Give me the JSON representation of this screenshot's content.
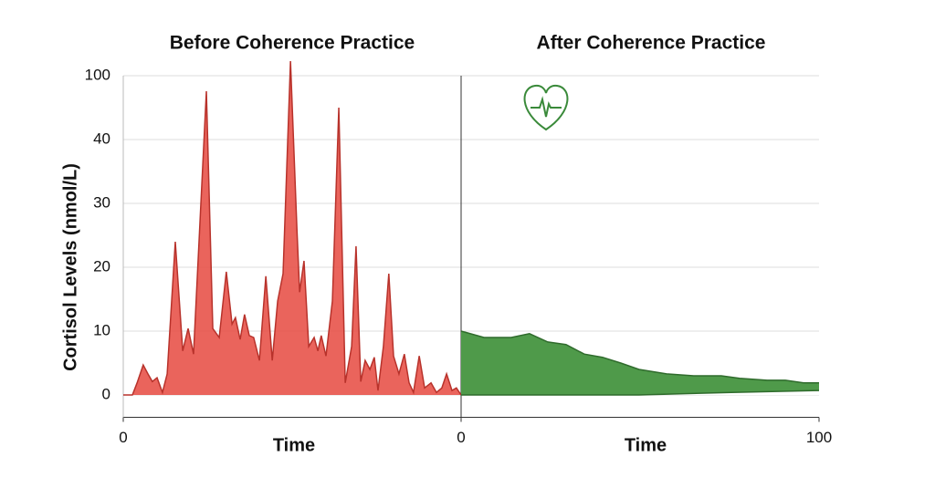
{
  "chart_data": [
    {
      "type": "area",
      "title": "Before Coherence Practice",
      "ylabel": "Cortisol Levels (nmol/L)",
      "xlabel": "Time",
      "xlim": [
        0,
        100
      ],
      "xticks": [
        0
      ],
      "ylim": [
        -3.5,
        114
      ],
      "yticks": [
        0,
        10,
        20,
        30,
        40,
        100
      ],
      "grid": true,
      "series": [
        {
          "color": "#e8534a",
          "x": [
            0,
            2.7,
            4.1,
            5.9,
            7.3,
            8.6,
            10,
            11.6,
            13,
            15.4,
            17.6,
            19.2,
            20.8,
            24.6,
            26.5,
            28.4,
            30.5,
            32.2,
            33.2,
            34.6,
            35.9,
            37.3,
            38.6,
            40.3,
            42.2,
            44.1,
            45.7,
            47.3,
            49.5,
            51.4,
            52.2,
            53.5,
            54.9,
            56.5,
            57.6,
            58.6,
            60,
            61.9,
            63.8,
            65.7,
            67.6,
            68.9,
            70.3,
            71.6,
            73,
            74.3,
            75.4,
            77,
            78.6,
            80,
            81.6,
            83.2,
            84.6,
            85.9,
            87.6,
            89.2,
            91.1,
            92.7,
            94.3,
            95.7,
            97.3,
            98.6,
            100
          ],
          "values": [
            0,
            0,
            1.9,
            4.7,
            3.3,
            2.1,
            2.7,
            0.4,
            3.3,
            24,
            6.9,
            10.4,
            6.4,
            85.4,
            10.4,
            9,
            19.3,
            11.1,
            12.1,
            8.7,
            12.6,
            9.3,
            9,
            5.4,
            18.6,
            5.4,
            14.7,
            19,
            113.7,
            26,
            16.1,
            21,
            7.6,
            9,
            6.9,
            9.3,
            6.1,
            14.7,
            70,
            1.9,
            7.6,
            23.3,
            2.1,
            5.4,
            4,
            5.9,
            0.7,
            7.6,
            19,
            6.1,
            3.3,
            6.4,
            1.9,
            0.4,
            6.1,
            1.1,
            1.9,
            0.4,
            1.1,
            3.3,
            0.7,
            1.1,
            0
          ]
        }
      ]
    },
    {
      "type": "band",
      "title": "After Coherence Practice",
      "xlabel": "Time",
      "xlim": [
        0,
        100
      ],
      "xticks": [
        0,
        100
      ],
      "series": [
        {
          "color": "#4f9a4a",
          "x": [
            0,
            6.4,
            14,
            19.1,
            24.2,
            29.3,
            34.4,
            39.5,
            44.6,
            49.7,
            57.4,
            65,
            72.7,
            77.8,
            85.5,
            90.6,
            95.7,
            100
          ],
          "values": [
            10,
            9,
            9,
            9.6,
            8.3,
            7.9,
            6.4,
            5.9,
            5,
            4,
            3.3,
            3,
            3,
            2.6,
            2.3,
            2.3,
            1.9,
            1.9
          ]
        },
        {
          "color": "#2f6b2c",
          "x": [
            0,
            49.7,
            75.5,
            100
          ],
          "values": [
            0,
            0,
            0.4,
            0.7
          ]
        }
      ]
    }
  ]
}
